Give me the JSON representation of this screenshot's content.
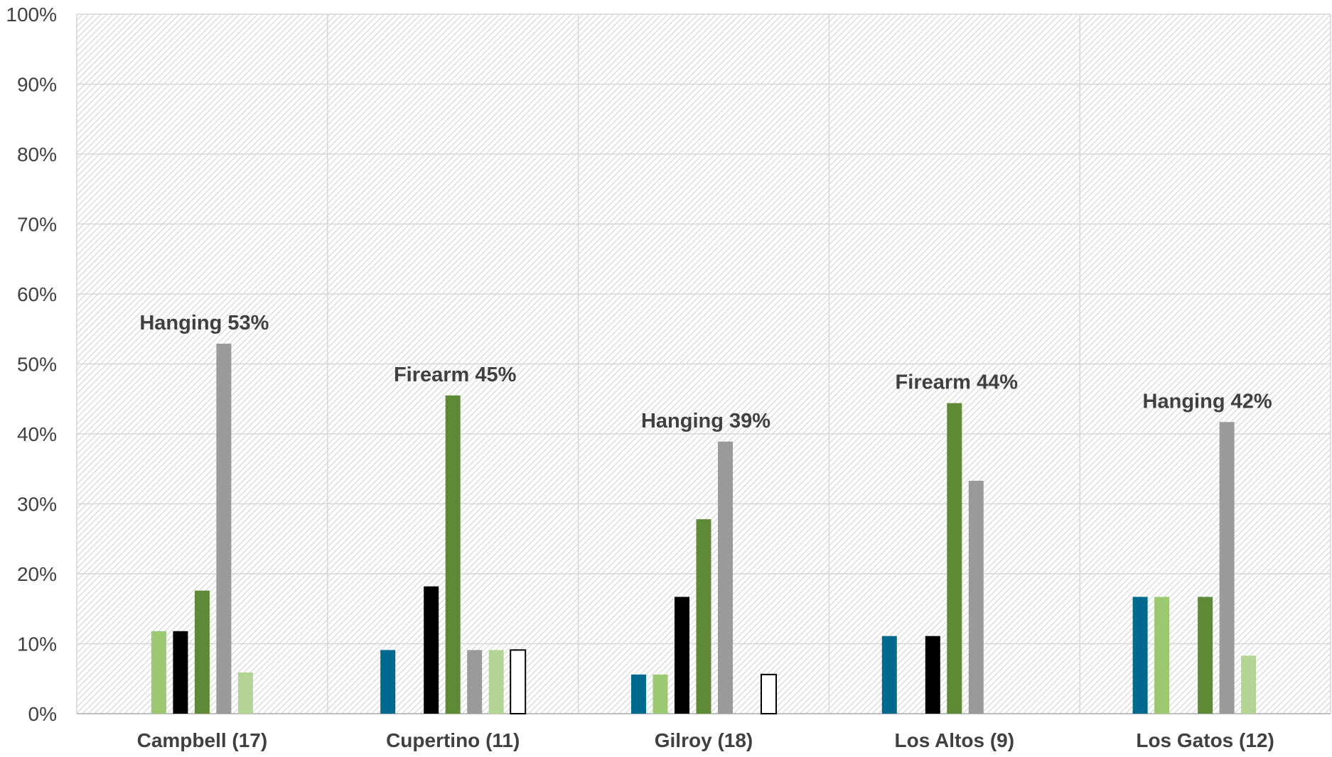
{
  "chart_data": {
    "type": "bar",
    "title": "",
    "xlabel": "",
    "ylabel": "",
    "ylim": [
      0,
      100
    ],
    "ytick_labels": [
      "0%",
      "10%",
      "20%",
      "30%",
      "40%",
      "50%",
      "60%",
      "70%",
      "80%",
      "90%",
      "100%"
    ],
    "grid": true,
    "legend": "none",
    "categories": [
      "Campbell (17)",
      "Cupertino (11)",
      "Gilroy (18)",
      "Los Altos (9)",
      "Los Gatos (12)"
    ],
    "series": [
      {
        "color": "#006a8e",
        "fill": true,
        "values": [
          0,
          9.1,
          5.6,
          11.1,
          16.7
        ]
      },
      {
        "color": "#9bc870",
        "fill": true,
        "values": [
          11.8,
          0,
          5.6,
          0,
          16.7
        ]
      },
      {
        "color": "#000000",
        "fill": true,
        "values": [
          11.8,
          18.2,
          16.7,
          11.1,
          0
        ]
      },
      {
        "color": "#5f8a35",
        "fill": true,
        "values": [
          17.6,
          45.5,
          27.8,
          44.4,
          16.7
        ]
      },
      {
        "color": "#9a9a9a",
        "fill": true,
        "values": [
          52.9,
          9.1,
          38.9,
          33.3,
          41.7
        ]
      },
      {
        "color": "#b2d494",
        "fill": true,
        "values": [
          5.9,
          9.1,
          0,
          0,
          8.3
        ]
      },
      {
        "color": "#000000",
        "fill": false,
        "values": [
          0,
          9.1,
          5.6,
          0,
          0
        ]
      }
    ],
    "annotations": [
      {
        "category": "Campbell (17)",
        "text": "Hanging 53%",
        "value": 52.9
      },
      {
        "category": "Cupertino (11)",
        "text": "Firearm 45%",
        "value": 45.5
      },
      {
        "category": "Gilroy (18)",
        "text": "Hanging 39%",
        "value": 38.9
      },
      {
        "category": "Los Altos (9)",
        "text": "Firearm 44%",
        "value": 44.4
      },
      {
        "category": "Los Gatos (12)",
        "text": "Hanging 42%",
        "value": 41.7
      }
    ]
  }
}
